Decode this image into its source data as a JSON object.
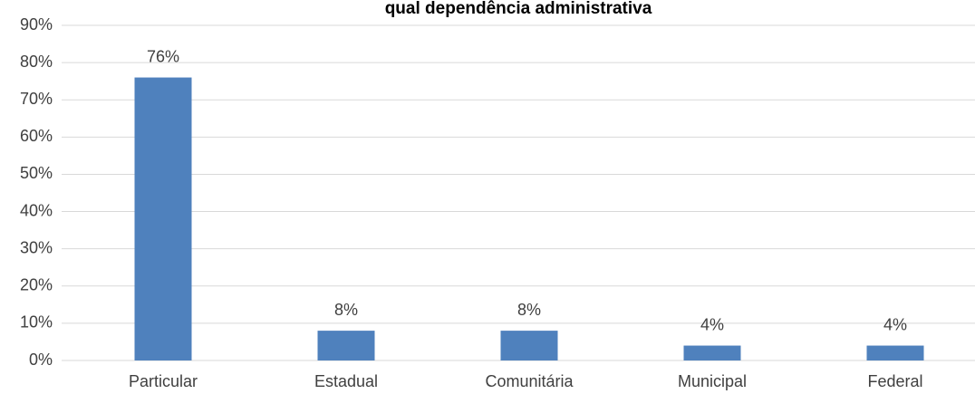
{
  "chart_data": {
    "type": "bar",
    "title": "qual dependência administrativa",
    "categories": [
      "Particular",
      "Estadual",
      "Comunitária",
      "Municipal",
      "Federal"
    ],
    "values": [
      76,
      8,
      8,
      4,
      4
    ],
    "value_labels": [
      "76%",
      "8%",
      "8%",
      "4%",
      "4%"
    ],
    "color": "#4f81bd",
    "ylim": [
      0,
      90
    ],
    "yticks": [
      {
        "value": 0,
        "label": "0%"
      },
      {
        "value": 10,
        "label": "10%"
      },
      {
        "value": 20,
        "label": "20%"
      },
      {
        "value": 30,
        "label": "30%"
      },
      {
        "value": 40,
        "label": "40%"
      },
      {
        "value": 50,
        "label": "50%"
      },
      {
        "value": 60,
        "label": "60%"
      },
      {
        "value": 70,
        "label": "70%"
      },
      {
        "value": 80,
        "label": "80%"
      },
      {
        "value": 90,
        "label": "90%"
      }
    ],
    "grid": true
  }
}
